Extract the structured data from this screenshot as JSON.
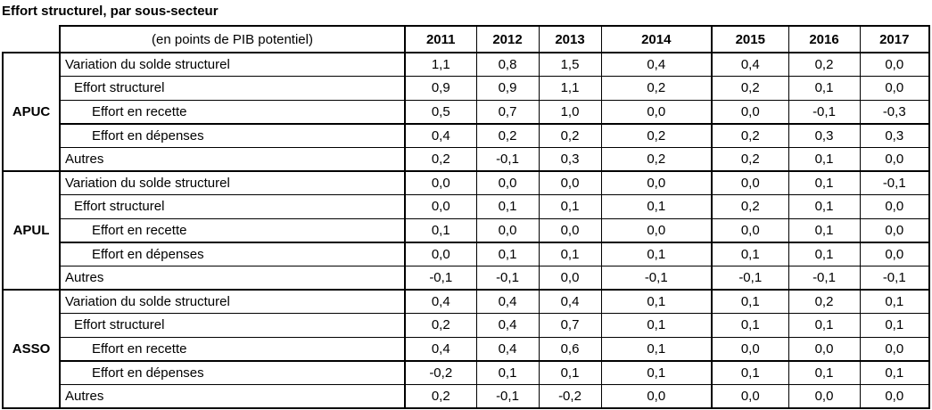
{
  "chart_data": {
    "type": "table",
    "title": "Effort structurel, par sous-secteur",
    "unit_label": "(en points de PIB potentiel)",
    "columns": [
      "2011",
      "2012",
      "2013",
      "2014",
      "2015",
      "2016",
      "2017"
    ],
    "sections": [
      {
        "sector": "APUC",
        "rows": [
          {
            "label": "Variation du solde structurel",
            "indent": 0,
            "values": [
              "1,1",
              "0,8",
              "1,5",
              "0,4",
              "0,4",
              "0,2",
              "0,0"
            ]
          },
          {
            "label": "Effort structurel",
            "indent": 1,
            "values": [
              "0,9",
              "0,9",
              "1,1",
              "0,2",
              "0,2",
              "0,1",
              "0,0"
            ]
          },
          {
            "label": "Effort en recette",
            "indent": 2,
            "values": [
              "0,5",
              "0,7",
              "1,0",
              "0,0",
              "0,0",
              "-0,1",
              "-0,3"
            ]
          },
          {
            "label": "Effort en dépenses",
            "indent": 2,
            "values": [
              "0,4",
              "0,2",
              "0,2",
              "0,2",
              "0,2",
              "0,3",
              "0,3"
            ]
          },
          {
            "label": "Autres",
            "indent": 0,
            "values": [
              "0,2",
              "-0,1",
              "0,3",
              "0,2",
              "0,2",
              "0,1",
              "0,0"
            ]
          }
        ]
      },
      {
        "sector": "APUL",
        "rows": [
          {
            "label": "Variation du solde structurel",
            "indent": 0,
            "values": [
              "0,0",
              "0,0",
              "0,0",
              "0,0",
              "0,0",
              "0,1",
              "-0,1"
            ]
          },
          {
            "label": "Effort structurel",
            "indent": 1,
            "values": [
              "0,0",
              "0,1",
              "0,1",
              "0,1",
              "0,2",
              "0,1",
              "0,0"
            ]
          },
          {
            "label": "Effort en recette",
            "indent": 2,
            "values": [
              "0,1",
              "0,0",
              "0,0",
              "0,0",
              "0,0",
              "0,1",
              "0,0"
            ]
          },
          {
            "label": "Effort en dépenses",
            "indent": 2,
            "values": [
              "0,0",
              "0,1",
              "0,1",
              "0,1",
              "0,1",
              "0,1",
              "0,0"
            ]
          },
          {
            "label": "Autres",
            "indent": 0,
            "values": [
              "-0,1",
              "-0,1",
              "0,0",
              "-0,1",
              "-0,1",
              "-0,1",
              "-0,1"
            ]
          }
        ]
      },
      {
        "sector": "ASSO",
        "rows": [
          {
            "label": "Variation du solde structurel",
            "indent": 0,
            "values": [
              "0,4",
              "0,4",
              "0,4",
              "0,1",
              "0,1",
              "0,2",
              "0,1"
            ]
          },
          {
            "label": "Effort structurel",
            "indent": 1,
            "values": [
              "0,2",
              "0,4",
              "0,7",
              "0,1",
              "0,1",
              "0,1",
              "0,1"
            ]
          },
          {
            "label": "Effort en recette",
            "indent": 2,
            "values": [
              "0,4",
              "0,4",
              "0,6",
              "0,1",
              "0,0",
              "0,0",
              "0,0"
            ]
          },
          {
            "label": "Effort en dépenses",
            "indent": 2,
            "values": [
              "-0,2",
              "0,1",
              "0,1",
              "0,1",
              "0,1",
              "0,1",
              "0,1"
            ]
          },
          {
            "label": "Autres",
            "indent": 0,
            "values": [
              "0,2",
              "-0,1",
              "-0,2",
              "0,0",
              "0,0",
              "0,0",
              "0,0"
            ]
          }
        ]
      }
    ],
    "layout_hints": {
      "decimal_separator": ",",
      "thick_divider_after_column": "2014",
      "thick_divider_after_rows": [
        "Effort en recette",
        "Autres"
      ]
    }
  },
  "colors": {
    "text": "#000000",
    "border": "#000000",
    "background": "#ffffff"
  }
}
